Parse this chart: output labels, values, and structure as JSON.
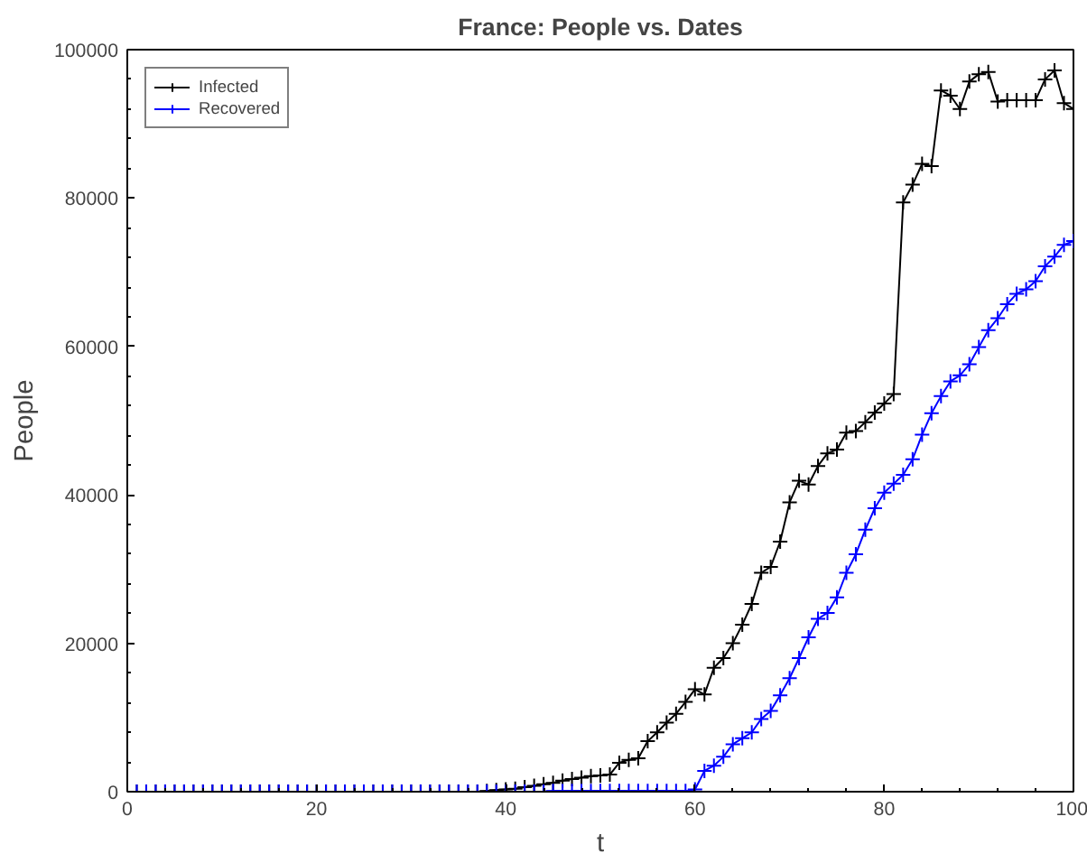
{
  "chart_data": {
    "type": "line",
    "title": "France: People vs. Dates",
    "xlabel": "t",
    "ylabel": "People",
    "x": [
      0,
      1,
      2,
      3,
      4,
      5,
      6,
      7,
      8,
      9,
      10,
      11,
      12,
      13,
      14,
      15,
      16,
      17,
      18,
      19,
      20,
      21,
      22,
      23,
      24,
      25,
      26,
      27,
      28,
      29,
      30,
      31,
      32,
      33,
      34,
      35,
      36,
      37,
      38,
      39,
      40,
      41,
      42,
      43,
      44,
      45,
      46,
      47,
      48,
      49,
      50,
      51,
      52,
      53,
      54,
      55,
      56,
      57,
      58,
      59,
      60,
      61,
      62,
      63,
      64,
      65,
      66,
      67,
      68,
      69,
      70,
      71,
      72,
      73,
      74,
      75,
      76,
      77,
      78,
      79,
      80,
      81,
      82,
      83,
      84,
      85,
      86,
      87,
      88,
      89,
      90,
      91,
      92,
      93,
      94,
      95,
      96,
      97,
      98,
      99,
      100
    ],
    "series": [
      {
        "name": "Infected",
        "color": "#000000",
        "values": [
          0,
          0,
          0,
          0,
          0,
          0,
          0,
          0,
          0,
          0,
          0,
          0,
          0,
          0,
          0,
          0,
          0,
          0,
          0,
          0,
          0,
          0,
          0,
          0,
          0,
          0,
          0,
          0,
          0,
          0,
          0,
          0,
          0,
          0,
          0,
          0,
          0,
          0,
          100,
          200,
          300,
          400,
          600,
          800,
          1000,
          1200,
          1500,
          1700,
          1900,
          2100,
          2200,
          2300,
          3900,
          4300,
          4500,
          6800,
          8000,
          9300,
          10500,
          12100,
          13800,
          13100,
          16700,
          18000,
          20000,
          22500,
          25300,
          29500,
          30300,
          33700,
          39000,
          41900,
          41400,
          43900,
          45600,
          46100,
          48400,
          48600,
          49800,
          51100,
          52300,
          53600,
          79400,
          81800,
          84600,
          84300,
          94500,
          93800,
          92000,
          95700,
          96700,
          97000,
          93000,
          93200,
          93200,
          93200,
          93200,
          96000,
          97200,
          92800,
          92000
        ]
      },
      {
        "name": "Recovered",
        "color": "#0000ff",
        "values": [
          0,
          0,
          0,
          0,
          0,
          0,
          0,
          0,
          0,
          0,
          0,
          0,
          0,
          0,
          0,
          0,
          0,
          0,
          0,
          0,
          0,
          0,
          0,
          0,
          0,
          0,
          0,
          0,
          0,
          0,
          0,
          0,
          0,
          0,
          0,
          0,
          0,
          0,
          0,
          0,
          0,
          0,
          0,
          0,
          0,
          100,
          100,
          100,
          100,
          100,
          100,
          100,
          100,
          100,
          100,
          100,
          100,
          100,
          100,
          100,
          300,
          2800,
          3500,
          4700,
          6400,
          7200,
          8000,
          9800,
          10900,
          13000,
          15300,
          18000,
          20800,
          23300,
          24100,
          26200,
          29500,
          32000,
          35300,
          38200,
          40300,
          41500,
          42700,
          44800,
          48100,
          51000,
          53300,
          55300,
          56100,
          57600,
          59900,
          62200,
          63800,
          65700,
          67100,
          67700,
          68800,
          70800,
          72100,
          73700,
          74200
        ]
      }
    ],
    "xlim": [
      0,
      100
    ],
    "xticks": [
      0,
      20,
      40,
      60,
      80,
      100
    ],
    "ylim": [
      0,
      100000
    ],
    "yticks": [
      0,
      20000,
      40000,
      60000,
      80000,
      100000
    ],
    "grid": false,
    "legend": "top left",
    "marker": "cross",
    "line_style": "solid"
  }
}
